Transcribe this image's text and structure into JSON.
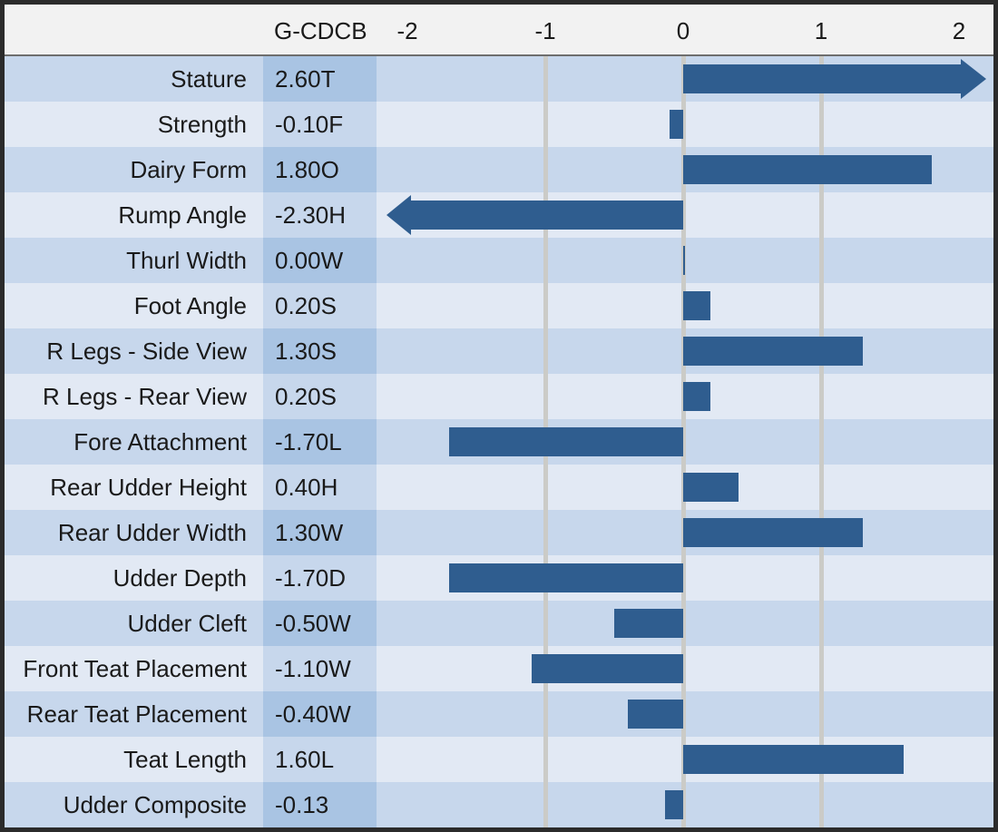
{
  "header": {
    "column_label": "G-CDCB",
    "axis_ticks": [
      "-2",
      "-1",
      "0",
      "1",
      "2"
    ]
  },
  "rows": [
    {
      "label": "Stature",
      "value": "2.60T",
      "v": 2.6,
      "overflow": "right"
    },
    {
      "label": "Strength",
      "value": "-0.10F",
      "v": -0.1,
      "overflow": null
    },
    {
      "label": "Dairy Form",
      "value": "1.80O",
      "v": 1.8,
      "overflow": null
    },
    {
      "label": "Rump Angle",
      "value": "-2.30H",
      "v": -2.3,
      "overflow": "left"
    },
    {
      "label": "Thurl Width",
      "value": "0.00W",
      "v": 0.0,
      "overflow": null
    },
    {
      "label": "Foot Angle",
      "value": "0.20S",
      "v": 0.2,
      "overflow": null
    },
    {
      "label": "R Legs - Side View",
      "value": "1.30S",
      "v": 1.3,
      "overflow": null
    },
    {
      "label": "R Legs - Rear View",
      "value": "0.20S",
      "v": 0.2,
      "overflow": null
    },
    {
      "label": "Fore Attachment",
      "value": "-1.70L",
      "v": -1.7,
      "overflow": null
    },
    {
      "label": "Rear Udder Height",
      "value": "0.40H",
      "v": 0.4,
      "overflow": null
    },
    {
      "label": "Rear Udder Width",
      "value": "1.30W",
      "v": 1.3,
      "overflow": null
    },
    {
      "label": "Udder Depth",
      "value": "-1.70D",
      "v": -1.7,
      "overflow": null
    },
    {
      "label": "Udder Cleft",
      "value": "-0.50W",
      "v": -0.5,
      "overflow": null
    },
    {
      "label": "Front Teat Placement",
      "value": "-1.10W",
      "v": -1.1,
      "overflow": null
    },
    {
      "label": "Rear Teat Placement",
      "value": "-0.40W",
      "v": -0.4,
      "overflow": null
    },
    {
      "label": "Teat Length",
      "value": "1.60L",
      "v": 1.6,
      "overflow": null
    },
    {
      "label": "Udder Composite",
      "value": "-0.13",
      "v": -0.13,
      "overflow": null
    }
  ],
  "chart_data": {
    "type": "bar",
    "orientation": "horizontal",
    "title": "",
    "column_header": "G-CDCB",
    "categories": [
      "Stature",
      "Strength",
      "Dairy Form",
      "Rump Angle",
      "Thurl Width",
      "Foot Angle",
      "R Legs - Side View",
      "R Legs - Rear View",
      "Fore Attachment",
      "Rear Udder Height",
      "Rear Udder Width",
      "Udder Depth",
      "Udder Cleft",
      "Front Teat Placement",
      "Rear Teat Placement",
      "Teat Length",
      "Udder Composite"
    ],
    "values": [
      2.6,
      -0.1,
      1.8,
      -2.3,
      0.0,
      0.2,
      1.3,
      0.2,
      -1.7,
      0.4,
      1.3,
      -1.7,
      -0.5,
      -1.1,
      -0.4,
      1.6,
      -0.13
    ],
    "value_labels": [
      "2.60T",
      "-0.10F",
      "1.80O",
      "-2.30H",
      "0.00W",
      "0.20S",
      "1.30S",
      "0.20S",
      "-1.70L",
      "0.40H",
      "1.30W",
      "-1.70D",
      "-0.50W",
      "-1.10W",
      "-0.40W",
      "1.60L",
      "-0.13"
    ],
    "xlabel": "",
    "ylabel": "",
    "xlim": [
      -2.25,
      2.25
    ],
    "axis_tick_values": [
      -2,
      -1,
      0,
      1,
      2
    ],
    "gridline_values": [
      -1,
      0,
      1
    ],
    "grid": "vertical-partial",
    "legend": "none",
    "clipped_with_arrows": [
      "Stature",
      "Rump Angle"
    ]
  },
  "colors": {
    "bar": "#2f5d8f",
    "row_light": "#e2e9f4",
    "row_mid": "#c7d7ec",
    "value_col_dark": "#a9c4e3",
    "header_bg": "#f2f2f2",
    "gridline": "#cbcbc7",
    "border": "#2b2b2b",
    "text": "#1a1a1a"
  }
}
